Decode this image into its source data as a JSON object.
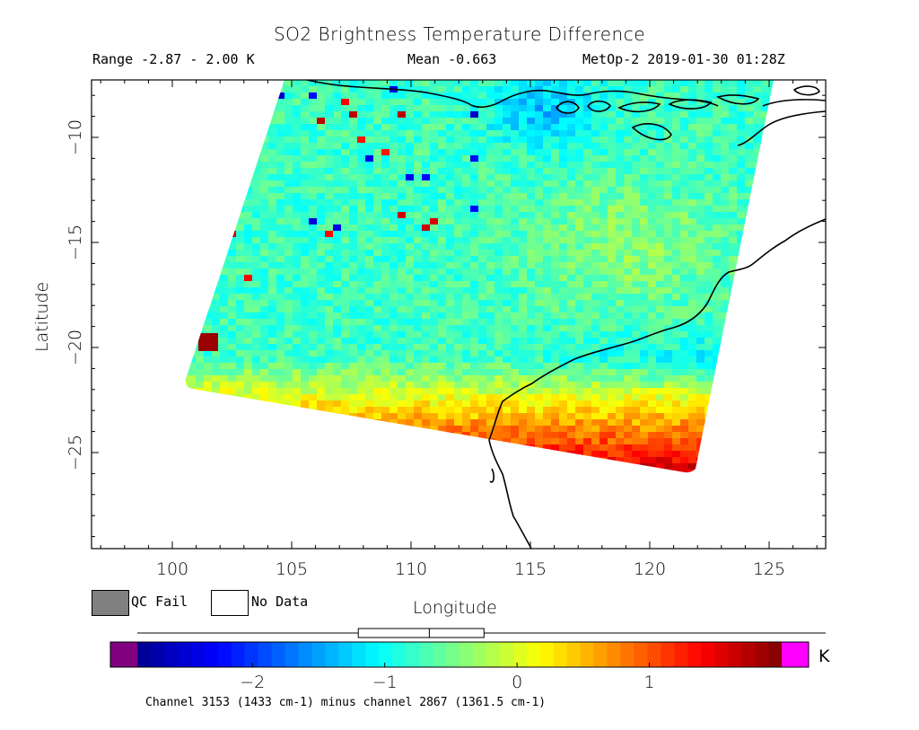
{
  "header": {
    "title": "SO2 Brightness Temperature Difference",
    "range": "Range -2.87 - 2.00 K",
    "mean": "Mean -0.663",
    "satellite_time": "MetOp-2 2019-01-30 01:28Z"
  },
  "axes": {
    "xlabel": "Longitude",
    "ylabel": "Latitude",
    "x_ticks": [
      "100",
      "105",
      "110",
      "115",
      "120",
      "125"
    ],
    "y_ticks": [
      "-10",
      "-15",
      "-20",
      "-25"
    ],
    "lon_range": [
      97,
      127.3
    ],
    "lat_range": [
      -29.6,
      -7.3
    ]
  },
  "legend": {
    "qc_fail": "QC Fail",
    "no_data": "No Data",
    "qc_fail_color": "#808080"
  },
  "colorbar": {
    "unit": "K",
    "ticks": [
      "-2",
      "-1",
      "0",
      "1"
    ],
    "tick_values": [
      -2,
      -1,
      0,
      1
    ],
    "range": [
      -2.87,
      2.0
    ],
    "underflow_color": "#800080",
    "overflow_color": "#ff00ff",
    "colormap": [
      "#00008f",
      "#0000ff",
      "#0080ff",
      "#00ffff",
      "#80ff80",
      "#ffff00",
      "#ff8000",
      "#ff0000",
      "#800000"
    ],
    "caption": "Channel 3153 (1433 cm-1) minus channel 2867 (1361.5 cm-1)"
  }
}
